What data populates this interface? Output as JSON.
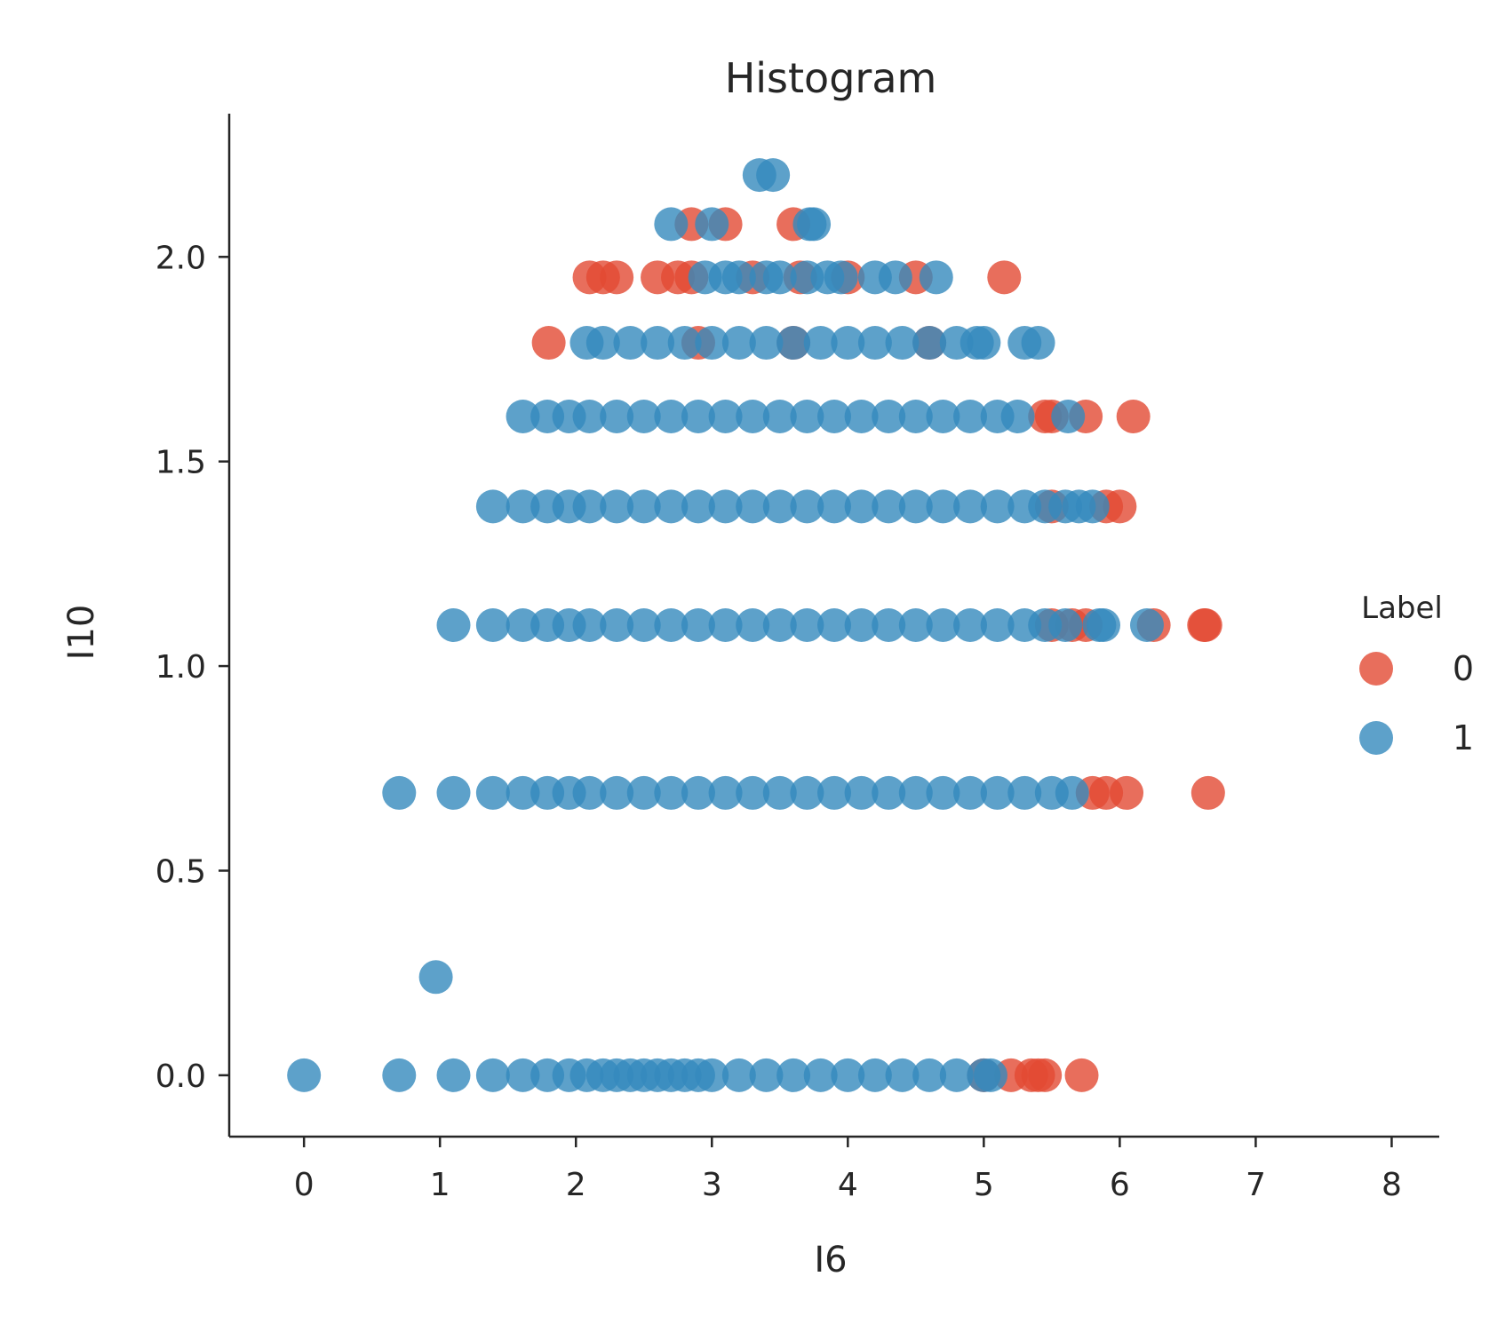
{
  "chart_data": {
    "type": "scatter",
    "title": "Histogram",
    "xlabel": "I6",
    "ylabel": "I10",
    "xlim": [
      -0.55,
      8.35
    ],
    "ylim": [
      -0.15,
      2.35
    ],
    "x_ticks": [
      0,
      1,
      2,
      3,
      4,
      5,
      6,
      7,
      8
    ],
    "x_tick_labels": [
      "0",
      "1",
      "2",
      "3",
      "4",
      "5",
      "6",
      "7",
      "8"
    ],
    "y_ticks": [
      0.0,
      0.5,
      1.0,
      1.5,
      2.0
    ],
    "y_tick_labels": [
      "0.0",
      "0.5",
      "1.0",
      "1.5",
      "2.0"
    ],
    "grid": false,
    "legend": {
      "title": "Label",
      "placement": "center-right",
      "entries": [
        "0",
        "1"
      ]
    },
    "series": [
      {
        "name": "0",
        "color": "#e24a33",
        "points": [
          [
            5.0,
            0.0
          ],
          [
            5.2,
            0.0
          ],
          [
            5.35,
            0.0
          ],
          [
            5.4,
            0.0
          ],
          [
            5.45,
            0.0
          ],
          [
            5.72,
            0.0
          ],
          [
            6.05,
            0.69
          ],
          [
            5.9,
            0.69
          ],
          [
            5.8,
            0.69
          ],
          [
            6.65,
            0.69
          ],
          [
            5.5,
            1.1
          ],
          [
            5.65,
            1.1
          ],
          [
            5.75,
            1.1
          ],
          [
            6.25,
            1.1
          ],
          [
            6.62,
            1.1
          ],
          [
            6.63,
            1.1
          ],
          [
            5.5,
            1.39
          ],
          [
            6.0,
            1.39
          ],
          [
            5.9,
            1.39
          ],
          [
            5.45,
            1.61
          ],
          [
            5.5,
            1.61
          ],
          [
            5.75,
            1.61
          ],
          [
            6.1,
            1.61
          ],
          [
            1.8,
            1.79
          ],
          [
            2.9,
            1.79
          ],
          [
            3.6,
            1.79
          ],
          [
            4.6,
            1.79
          ],
          [
            2.1,
            1.95
          ],
          [
            2.2,
            1.95
          ],
          [
            2.3,
            1.95
          ],
          [
            2.6,
            1.95
          ],
          [
            2.75,
            1.95
          ],
          [
            2.85,
            1.95
          ],
          [
            3.3,
            1.95
          ],
          [
            3.65,
            1.95
          ],
          [
            4.0,
            1.95
          ],
          [
            4.5,
            1.95
          ],
          [
            5.15,
            1.95
          ],
          [
            2.85,
            2.08
          ],
          [
            3.1,
            2.08
          ],
          [
            3.6,
            2.08
          ]
        ]
      },
      {
        "name": "1",
        "color": "#348abd",
        "points": [
          [
            0.0,
            0.0
          ],
          [
            0.7,
            0.0
          ],
          [
            1.1,
            0.0
          ],
          [
            1.39,
            0.0
          ],
          [
            1.61,
            0.0
          ],
          [
            1.79,
            0.0
          ],
          [
            1.95,
            0.0
          ],
          [
            2.08,
            0.0
          ],
          [
            2.2,
            0.0
          ],
          [
            2.3,
            0.0
          ],
          [
            2.4,
            0.0
          ],
          [
            2.5,
            0.0
          ],
          [
            2.6,
            0.0
          ],
          [
            2.7,
            0.0
          ],
          [
            2.8,
            0.0
          ],
          [
            2.9,
            0.0
          ],
          [
            3.0,
            0.0
          ],
          [
            3.2,
            0.0
          ],
          [
            3.4,
            0.0
          ],
          [
            3.6,
            0.0
          ],
          [
            3.8,
            0.0
          ],
          [
            4.0,
            0.0
          ],
          [
            4.2,
            0.0
          ],
          [
            4.4,
            0.0
          ],
          [
            4.6,
            0.0
          ],
          [
            4.8,
            0.0
          ],
          [
            5.0,
            0.0
          ],
          [
            5.05,
            0.0
          ],
          [
            0.97,
            0.24
          ],
          [
            0.7,
            0.69
          ],
          [
            1.1,
            0.69
          ],
          [
            1.39,
            0.69
          ],
          [
            1.61,
            0.69
          ],
          [
            1.79,
            0.69
          ],
          [
            1.95,
            0.69
          ],
          [
            2.1,
            0.69
          ],
          [
            2.3,
            0.69
          ],
          [
            2.5,
            0.69
          ],
          [
            2.7,
            0.69
          ],
          [
            2.9,
            0.69
          ],
          [
            3.1,
            0.69
          ],
          [
            3.3,
            0.69
          ],
          [
            3.5,
            0.69
          ],
          [
            3.7,
            0.69
          ],
          [
            3.9,
            0.69
          ],
          [
            4.1,
            0.69
          ],
          [
            4.3,
            0.69
          ],
          [
            4.5,
            0.69
          ],
          [
            4.7,
            0.69
          ],
          [
            4.9,
            0.69
          ],
          [
            5.1,
            0.69
          ],
          [
            5.3,
            0.69
          ],
          [
            5.5,
            0.69
          ],
          [
            5.65,
            0.69
          ],
          [
            1.1,
            1.1
          ],
          [
            1.39,
            1.1
          ],
          [
            1.61,
            1.1
          ],
          [
            1.79,
            1.1
          ],
          [
            1.95,
            1.1
          ],
          [
            2.1,
            1.1
          ],
          [
            2.3,
            1.1
          ],
          [
            2.5,
            1.1
          ],
          [
            2.7,
            1.1
          ],
          [
            2.9,
            1.1
          ],
          [
            3.1,
            1.1
          ],
          [
            3.3,
            1.1
          ],
          [
            3.5,
            1.1
          ],
          [
            3.7,
            1.1
          ],
          [
            3.9,
            1.1
          ],
          [
            4.1,
            1.1
          ],
          [
            4.3,
            1.1
          ],
          [
            4.5,
            1.1
          ],
          [
            4.7,
            1.1
          ],
          [
            4.9,
            1.1
          ],
          [
            5.1,
            1.1
          ],
          [
            5.3,
            1.1
          ],
          [
            5.45,
            1.1
          ],
          [
            5.6,
            1.1
          ],
          [
            5.85,
            1.1
          ],
          [
            5.88,
            1.1
          ],
          [
            6.2,
            1.1
          ],
          [
            1.39,
            1.39
          ],
          [
            1.61,
            1.39
          ],
          [
            1.79,
            1.39
          ],
          [
            1.95,
            1.39
          ],
          [
            2.1,
            1.39
          ],
          [
            2.3,
            1.39
          ],
          [
            2.5,
            1.39
          ],
          [
            2.7,
            1.39
          ],
          [
            2.9,
            1.39
          ],
          [
            3.1,
            1.39
          ],
          [
            3.3,
            1.39
          ],
          [
            3.5,
            1.39
          ],
          [
            3.7,
            1.39
          ],
          [
            3.9,
            1.39
          ],
          [
            4.1,
            1.39
          ],
          [
            4.3,
            1.39
          ],
          [
            4.5,
            1.39
          ],
          [
            4.7,
            1.39
          ],
          [
            4.9,
            1.39
          ],
          [
            5.1,
            1.39
          ],
          [
            5.3,
            1.39
          ],
          [
            5.45,
            1.39
          ],
          [
            5.6,
            1.39
          ],
          [
            5.7,
            1.39
          ],
          [
            5.8,
            1.39
          ],
          [
            1.61,
            1.61
          ],
          [
            1.79,
            1.61
          ],
          [
            1.95,
            1.61
          ],
          [
            2.1,
            1.61
          ],
          [
            2.3,
            1.61
          ],
          [
            2.5,
            1.61
          ],
          [
            2.7,
            1.61
          ],
          [
            2.9,
            1.61
          ],
          [
            3.1,
            1.61
          ],
          [
            3.3,
            1.61
          ],
          [
            3.5,
            1.61
          ],
          [
            3.7,
            1.61
          ],
          [
            3.9,
            1.61
          ],
          [
            4.1,
            1.61
          ],
          [
            4.3,
            1.61
          ],
          [
            4.5,
            1.61
          ],
          [
            4.7,
            1.61
          ],
          [
            4.9,
            1.61
          ],
          [
            5.1,
            1.61
          ],
          [
            5.25,
            1.61
          ],
          [
            5.62,
            1.61
          ],
          [
            2.08,
            1.79
          ],
          [
            2.2,
            1.79
          ],
          [
            2.4,
            1.79
          ],
          [
            2.6,
            1.79
          ],
          [
            2.8,
            1.79
          ],
          [
            3.0,
            1.79
          ],
          [
            3.2,
            1.79
          ],
          [
            3.4,
            1.79
          ],
          [
            3.6,
            1.79
          ],
          [
            3.8,
            1.79
          ],
          [
            4.0,
            1.79
          ],
          [
            4.2,
            1.79
          ],
          [
            4.4,
            1.79
          ],
          [
            4.6,
            1.79
          ],
          [
            4.8,
            1.79
          ],
          [
            4.95,
            1.79
          ],
          [
            5.0,
            1.79
          ],
          [
            5.3,
            1.79
          ],
          [
            5.4,
            1.79
          ],
          [
            2.95,
            1.95
          ],
          [
            3.1,
            1.95
          ],
          [
            3.2,
            1.95
          ],
          [
            3.4,
            1.95
          ],
          [
            3.5,
            1.95
          ],
          [
            3.7,
            1.95
          ],
          [
            3.85,
            1.95
          ],
          [
            3.95,
            1.95
          ],
          [
            4.2,
            1.95
          ],
          [
            4.35,
            1.95
          ],
          [
            4.65,
            1.95
          ],
          [
            2.7,
            2.08
          ],
          [
            3.0,
            2.08
          ],
          [
            3.72,
            2.08
          ],
          [
            3.75,
            2.08
          ],
          [
            3.35,
            2.2
          ],
          [
            3.45,
            2.2
          ]
        ]
      }
    ]
  }
}
